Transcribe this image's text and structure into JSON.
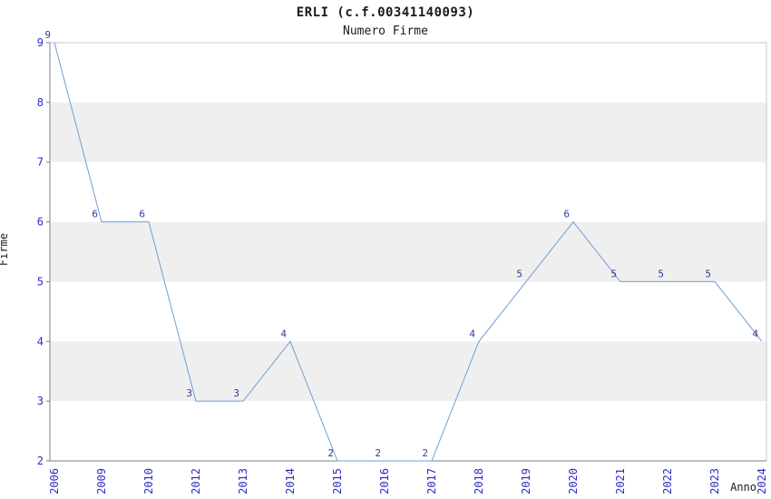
{
  "chart_data": {
    "type": "line",
    "title": "ERLI (c.f.00341140093)",
    "subtitle": "Numero Firme",
    "xlabel": "Anno",
    "ylabel": "Firme",
    "categories": [
      "2006",
      "2009",
      "2010",
      "2012",
      "2013",
      "2014",
      "2015",
      "2016",
      "2017",
      "2018",
      "2019",
      "2020",
      "2021",
      "2022",
      "2023",
      "2024"
    ],
    "values": [
      9,
      6,
      6,
      3,
      3,
      4,
      2,
      2,
      2,
      4,
      5,
      6,
      5,
      5,
      5,
      4
    ],
    "ylim": [
      2,
      9
    ],
    "yticks": [
      2,
      3,
      4,
      5,
      6,
      7,
      8,
      9
    ],
    "legend": "off",
    "grid": "off",
    "line_color": "#6d9fd4",
    "tick_label_color": "#2b2bcc",
    "data_label_color": "#333a99",
    "band_color": "#efefef",
    "border_color": "#c9c9c9",
    "axis_color": "#808080"
  }
}
